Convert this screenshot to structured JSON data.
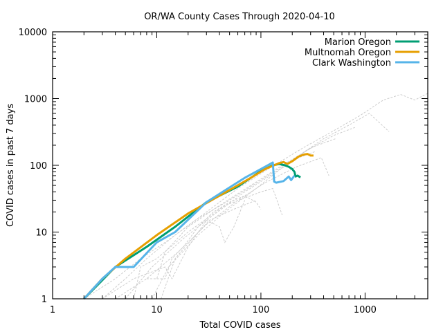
{
  "chart_data": {
    "type": "line",
    "title": "OR/WA County Cases Through 2020-04-10",
    "xlabel": "Total COVID cases",
    "ylabel": "COVID cases in past 7 days",
    "xscale": "log",
    "yscale": "log",
    "xlim": [
      1,
      4000
    ],
    "ylim": [
      1,
      10000
    ],
    "xticks": [
      {
        "value": 1,
        "label": "1"
      },
      {
        "value": 10,
        "label": "10"
      },
      {
        "value": 100,
        "label": "100"
      },
      {
        "value": 1000,
        "label": "1000"
      }
    ],
    "yticks": [
      {
        "value": 1,
        "label": "1"
      },
      {
        "value": 10,
        "label": "10"
      },
      {
        "value": 100,
        "label": "100"
      },
      {
        "value": 1000,
        "label": "1000"
      },
      {
        "value": 10000,
        "label": "10000"
      }
    ],
    "grid": false,
    "legend_position": "top-right",
    "series": [
      {
        "name": "Marion Oregon",
        "color": "#009e73",
        "points": [
          [
            2,
            1
          ],
          [
            4,
            3
          ],
          [
            8,
            6
          ],
          [
            15,
            12
          ],
          [
            30,
            28
          ],
          [
            60,
            48
          ],
          [
            100,
            82
          ],
          [
            130,
            100
          ],
          [
            150,
            105
          ],
          [
            170,
            100
          ],
          [
            185,
            95
          ],
          [
            200,
            88
          ],
          [
            210,
            80
          ],
          [
            215,
            68
          ],
          [
            225,
            70
          ],
          [
            240,
            66
          ]
        ]
      },
      {
        "name": "Multnomah Oregon",
        "color": "#e69f00",
        "points": [
          [
            2,
            1
          ],
          [
            3,
            2
          ],
          [
            5,
            4
          ],
          [
            10,
            9
          ],
          [
            20,
            19
          ],
          [
            40,
            35
          ],
          [
            80,
            65
          ],
          [
            110,
            88
          ],
          [
            130,
            98
          ],
          [
            150,
            108
          ],
          [
            165,
            112
          ],
          [
            180,
            105
          ],
          [
            200,
            115
          ],
          [
            230,
            135
          ],
          [
            260,
            145
          ],
          [
            280,
            148
          ],
          [
            300,
            140
          ],
          [
            320,
            140
          ]
        ]
      },
      {
        "name": "Clark Washington",
        "color": "#56b4e9",
        "points": [
          [
            2,
            1
          ],
          [
            3,
            2
          ],
          [
            4,
            3
          ],
          [
            6,
            3
          ],
          [
            10,
            7
          ],
          [
            15,
            10
          ],
          [
            30,
            28
          ],
          [
            45,
            42
          ],
          [
            70,
            65
          ],
          [
            100,
            88
          ],
          [
            130,
            110
          ],
          [
            134,
            57
          ],
          [
            140,
            55
          ],
          [
            165,
            58
          ],
          [
            185,
            68
          ],
          [
            195,
            60
          ],
          [
            210,
            70
          ]
        ]
      }
    ],
    "background_series": [
      {
        "color": "#cccccc",
        "points": [
          [
            3,
            1
          ],
          [
            5,
            2
          ],
          [
            8,
            4
          ],
          [
            15,
            9
          ],
          [
            30,
            20
          ],
          [
            60,
            45
          ],
          [
            120,
            90
          ],
          [
            250,
            180
          ],
          [
            500,
            330
          ],
          [
            900,
            560
          ],
          [
            1500,
            950
          ],
          [
            2200,
            1150
          ],
          [
            3000,
            950
          ],
          [
            4000,
            1200
          ]
        ]
      },
      {
        "color": "#cccccc",
        "points": [
          [
            2,
            1
          ],
          [
            4,
            2
          ],
          [
            7,
            4
          ],
          [
            12,
            7
          ],
          [
            25,
            16
          ],
          [
            50,
            30
          ],
          [
            100,
            60
          ],
          [
            200,
            120
          ],
          [
            400,
            250
          ],
          [
            700,
            400
          ],
          [
            1100,
            600
          ],
          [
            1700,
            320
          ]
        ]
      },
      {
        "color": "#cccccc",
        "points": [
          [
            5,
            1
          ],
          [
            9,
            3
          ],
          [
            18,
            8
          ],
          [
            35,
            18
          ],
          [
            70,
            40
          ],
          [
            140,
            80
          ],
          [
            280,
            170
          ],
          [
            500,
            280
          ],
          [
            800,
            370
          ]
        ]
      },
      {
        "color": "#cccccc",
        "points": [
          [
            8,
            2
          ],
          [
            10,
            2
          ],
          [
            12,
            5
          ],
          [
            20,
            12
          ],
          [
            40,
            25
          ],
          [
            80,
            50
          ],
          [
            160,
            100
          ],
          [
            320,
            190
          ],
          [
            520,
            250
          ]
        ]
      },
      {
        "color": "#cccccc",
        "points": [
          [
            9,
            1
          ],
          [
            13,
            3
          ],
          [
            25,
            9
          ],
          [
            45,
            20
          ],
          [
            90,
            45
          ],
          [
            150,
            85
          ],
          [
            230,
            130
          ],
          [
            330,
            160
          ]
        ]
      },
      {
        "color": "#cccccc",
        "points": [
          [
            6,
            1
          ],
          [
            7,
            3
          ],
          [
            10,
            4
          ],
          [
            20,
            10
          ],
          [
            45,
            25
          ],
          [
            100,
            40
          ],
          [
            130,
            45
          ],
          [
            160,
            18
          ]
        ]
      },
      {
        "color": "#cccccc",
        "points": [
          [
            3,
            1
          ],
          [
            6,
            2
          ],
          [
            12,
            3
          ],
          [
            14,
            2
          ],
          [
            20,
            6
          ],
          [
            30,
            15
          ],
          [
            40,
            12
          ],
          [
            45,
            7
          ],
          [
            55,
            12
          ],
          [
            70,
            30
          ]
        ]
      },
      {
        "color": "#cccccc",
        "points": [
          [
            10,
            2
          ],
          [
            12,
            2
          ],
          [
            14,
            4
          ],
          [
            18,
            6
          ],
          [
            25,
            12
          ],
          [
            35,
            20
          ],
          [
            50,
            28
          ],
          [
            70,
            35
          ],
          [
            90,
            28
          ],
          [
            100,
            22
          ]
        ]
      },
      {
        "color": "#cccccc",
        "points": [
          [
            4,
            1
          ],
          [
            8,
            2
          ],
          [
            16,
            5
          ],
          [
            30,
            13
          ],
          [
            60,
            30
          ],
          [
            110,
            55
          ],
          [
            220,
            95
          ],
          [
            380,
            130
          ],
          [
            450,
            70
          ]
        ]
      },
      {
        "color": "#cccccc",
        "points": [
          [
            11,
            1
          ],
          [
            15,
            4
          ],
          [
            22,
            8
          ],
          [
            32,
            15
          ],
          [
            55,
            22
          ],
          [
            90,
            30
          ]
        ]
      }
    ]
  }
}
